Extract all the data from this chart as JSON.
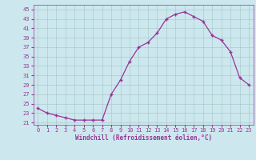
{
  "x": [
    0,
    1,
    2,
    3,
    4,
    5,
    6,
    7,
    8,
    9,
    10,
    11,
    12,
    13,
    14,
    15,
    16,
    17,
    18,
    19,
    20,
    21,
    22,
    23
  ],
  "y": [
    24,
    23,
    22.5,
    22,
    21.5,
    21.5,
    21.5,
    21.5,
    27,
    30,
    34,
    37,
    38,
    40,
    43,
    44,
    44.5,
    43.5,
    42.5,
    39.5,
    38.5,
    36,
    30.5,
    29
  ],
  "line_color": "#993399",
  "marker": "+",
  "marker_size": 3,
  "marker_linewidth": 1.0,
  "bg_color": "#cce8ee",
  "grid_color": "#aacccc",
  "xlabel": "Windchill (Refroidissement éolien,°C)",
  "xticks": [
    0,
    1,
    2,
    3,
    4,
    5,
    6,
    7,
    8,
    9,
    10,
    11,
    12,
    13,
    14,
    15,
    16,
    17,
    18,
    19,
    20,
    21,
    22,
    23
  ],
  "yticks": [
    21,
    23,
    25,
    27,
    29,
    31,
    33,
    35,
    37,
    39,
    41,
    43,
    45
  ],
  "ylim": [
    20.5,
    46.0
  ],
  "xlim": [
    -0.5,
    23.5
  ],
  "tick_fontsize": 5.0,
  "xlabel_fontsize": 5.5,
  "linewidth": 0.9
}
